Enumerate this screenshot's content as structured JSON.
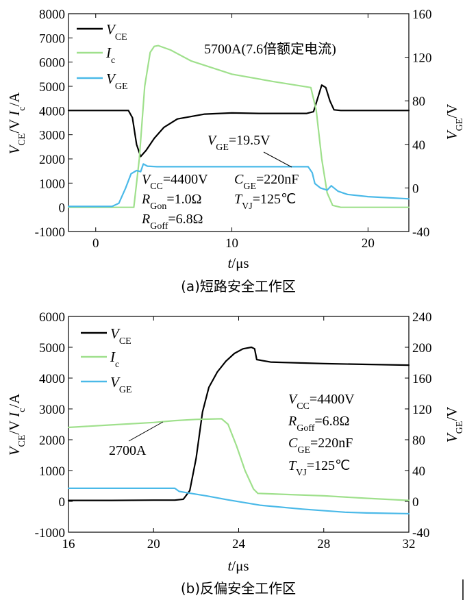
{
  "colors": {
    "vce": "#000000",
    "ic": "#9fe08c",
    "vge": "#4ab9e8"
  },
  "chart_data": [
    {
      "type": "line",
      "caption": "(a)短路安全工作区",
      "x_range": [
        -2,
        23
      ],
      "x_ticks": [
        "0",
        "10",
        "20"
      ],
      "ylim_left": [
        -1000,
        8000
      ],
      "y_ticks_left": [
        "8000",
        "7000",
        "6000",
        "5000",
        "4000",
        "3000",
        "2000",
        "1000",
        "0",
        "-1000"
      ],
      "ylim_right": [
        -40,
        160
      ],
      "y_ticks_right": [
        "160",
        "120",
        "80",
        "40",
        "0",
        "-40"
      ],
      "xlabel": {
        "main": "t",
        "unit": "/μs"
      },
      "ylabel_left": {
        "v": "V",
        "vsub": "CE",
        "mid": "/V  ",
        "i": "I",
        "isub": "c",
        "unit": "/A"
      },
      "ylabel_right": {
        "v": "V",
        "vsub": "GE",
        "unit": "/V"
      },
      "legend": [
        {
          "key": "vce",
          "name": "V",
          "sub": "CE"
        },
        {
          "key": "ic",
          "name": "I",
          "sub": "c"
        },
        {
          "key": "vge",
          "name": "V",
          "sub": "GE"
        }
      ],
      "title_note": "5700A(7.6倍额定电流)",
      "annotations": {
        "vge_level": {
          "v": "V",
          "sub": "GE",
          "text": "=19.5V"
        },
        "vcc": {
          "v": "V",
          "sub": "CC",
          "text": "=4400V"
        },
        "cge": {
          "v": "C",
          "sub": "GE",
          "text": "=220nF"
        },
        "rgon": {
          "v": "R",
          "sub": "Gon",
          "text": "=1.0Ω"
        },
        "tvj": {
          "v": "T",
          "sub": "VJ",
          "text": "=125℃"
        },
        "rgoff": {
          "v": "R",
          "sub": "Goff",
          "text": "=6.8Ω"
        }
      },
      "series": [
        {
          "key": "vce",
          "axis": "left",
          "x": [
            -2,
            2.4,
            2.7,
            3.0,
            3.3,
            3.7,
            4.3,
            5.0,
            6.0,
            8.0,
            10.0,
            12.0,
            14.0,
            15.5,
            16.0,
            16.3,
            16.6,
            16.9,
            17.2,
            17.5,
            18.0,
            20.0,
            23.0
          ],
          "y": [
            4000,
            4000,
            3700,
            2600,
            2100,
            2350,
            2850,
            3300,
            3650,
            3850,
            3900,
            3880,
            3880,
            3880,
            3950,
            4500,
            5050,
            4950,
            4400,
            4030,
            4000,
            4000,
            4000
          ]
        },
        {
          "key": "ic",
          "axis": "left",
          "x": [
            -2,
            2.8,
            3.2,
            3.6,
            4.0,
            4.3,
            4.6,
            5.5,
            7.0,
            10.0,
            13.0,
            15.8,
            16.2,
            16.6,
            17.0,
            17.4,
            18.0,
            23.0
          ],
          "y": [
            0,
            0,
            2000,
            5000,
            6400,
            6650,
            6680,
            6500,
            6050,
            5500,
            5200,
            4950,
            4000,
            2000,
            600,
            80,
            0,
            0
          ]
        },
        {
          "key": "vge",
          "axis": "right",
          "x": [
            -2,
            1.2,
            1.7,
            2.2,
            2.6,
            3.0,
            3.3,
            3.5,
            3.8,
            4.5,
            10.0,
            15.6,
            15.9,
            16.1,
            16.5,
            17.0,
            17.3,
            17.8,
            18.5,
            20.0,
            23.0
          ],
          "y": [
            -17,
            -17,
            -14,
            0,
            13,
            16,
            15,
            22,
            20,
            19.5,
            19.5,
            19.5,
            14,
            4,
            0,
            -2,
            2,
            -3,
            -6,
            -8,
            -10
          ]
        }
      ]
    },
    {
      "type": "line",
      "caption": "(b)反偏安全工作区",
      "x_range": [
        16,
        32
      ],
      "x_ticks": [
        "16",
        "20",
        "24",
        "28",
        "32"
      ],
      "ylim_left": [
        -1000,
        6000
      ],
      "y_ticks_left": [
        "6000",
        "5000",
        "4000",
        "3000",
        "2000",
        "1000",
        "0",
        "-1000"
      ],
      "ylim_right": [
        -40,
        240
      ],
      "y_ticks_right": [
        "240",
        "200",
        "160",
        "120",
        "80",
        "40",
        "0",
        "-40"
      ],
      "xlabel": {
        "main": "t",
        "unit": "/μs"
      },
      "ylabel_left": {
        "v": "V",
        "vsub": "CE",
        "mid": "/V  ",
        "i": "I",
        "isub": "c",
        "unit": "/A"
      },
      "ylabel_right": {
        "v": "V",
        "vsub": "GE",
        "unit": "/V"
      },
      "legend": [
        {
          "key": "vce",
          "name": "V",
          "sub": "CE"
        },
        {
          "key": "ic",
          "name": "I",
          "sub": "c"
        },
        {
          "key": "vge",
          "name": "V",
          "sub": "GE"
        }
      ],
      "annotations": {
        "current_label": "2700A",
        "vcc": {
          "v": "V",
          "sub": "CC",
          "text": "=4400V"
        },
        "rgoff": {
          "v": "R",
          "sub": "Goff",
          "text": "=6.8Ω"
        },
        "cge": {
          "v": "C",
          "sub": "GE",
          "text": "=220nF"
        },
        "tvj": {
          "v": "T",
          "sub": "VJ",
          "text": "=125℃"
        }
      },
      "series": [
        {
          "key": "vce",
          "axis": "left",
          "x": [
            16,
            18,
            20,
            21.0,
            21.4,
            21.7,
            22.0,
            22.3,
            22.6,
            23.0,
            23.4,
            23.8,
            24.2,
            24.6,
            24.75,
            24.85,
            25.5,
            28,
            32
          ],
          "y": [
            30,
            30,
            40,
            40,
            70,
            350,
            1400,
            2900,
            3700,
            4200,
            4550,
            4800,
            4950,
            5000,
            4950,
            4600,
            4520,
            4470,
            4420
          ]
        },
        {
          "key": "ic",
          "axis": "left",
          "x": [
            16,
            18,
            20,
            21,
            22,
            23.2,
            23.5,
            23.9,
            24.3,
            24.7,
            24.9,
            26,
            28,
            30,
            32
          ],
          "y": [
            2400,
            2480,
            2560,
            2620,
            2660,
            2680,
            2500,
            1800,
            1000,
            400,
            260,
            230,
            180,
            100,
            30
          ]
        },
        {
          "key": "vge",
          "axis": "right",
          "x": [
            16,
            18,
            20,
            21,
            21.2,
            21.6,
            22.5,
            23.5,
            25,
            27,
            29,
            30,
            32
          ],
          "y": [
            17,
            17,
            17,
            17,
            13,
            11,
            7,
            2,
            -5,
            -10,
            -14,
            -15,
            -16
          ]
        }
      ]
    }
  ]
}
